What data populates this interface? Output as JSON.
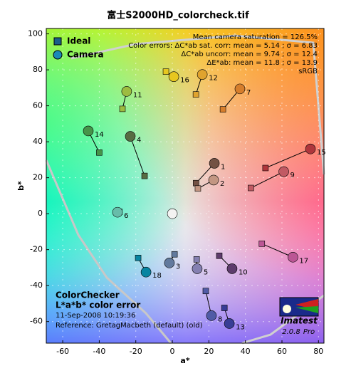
{
  "chart_data": {
    "type": "scatter",
    "title": "富士S2000HD_colorcheck.tif",
    "xlabel": "a*",
    "ylabel": "b*",
    "xlim": [
      -69,
      83
    ],
    "ylim": [
      -72,
      103
    ],
    "xticks": [
      -60,
      -40,
      -20,
      0,
      20,
      40,
      60,
      80
    ],
    "yticks": [
      -60,
      -40,
      -20,
      0,
      20,
      40,
      60,
      80,
      100
    ],
    "grid": true,
    "legend": "upper left",
    "annotations": [
      "Mean camera saturation = 126.5%",
      "Color errors:  ΔC*ab sat. corr:  mean = 5.14 ;  σ = 6.83",
      "ΔC*ab uncorr:  mean = 9.74 ;  σ = 12.4",
      "ΔE*ab:  mean = 11.8 ;  σ = 13.9",
      "sRGB"
    ],
    "notes": [
      "ColorChecker",
      "L*a*b* color error",
      "11-Sep-2008 10:19:36",
      "Reference: GretagMacbeth (default) (old)"
    ],
    "labels": [
      "1",
      "2",
      "3",
      "4",
      "5",
      "6",
      "7",
      "8",
      "9",
      "10",
      "11",
      "12",
      "13",
      "14",
      "15",
      "16",
      "17",
      "18",
      null
    ],
    "patch_colors": [
      "#735244",
      "#c29682",
      "#627a9d",
      "#576c43",
      "#8580b1",
      "#67bdaa",
      "#d67e2c",
      "#505ba6",
      "#c15a63",
      "#5e3c6c",
      "#9dbc40",
      "#e0a32e",
      "#383d96",
      "#469449",
      "#af363c",
      "#e7c71f",
      "#bb5695",
      "#0885a1",
      "#f3f3f2"
    ],
    "series": [
      {
        "name": "Ideal",
        "marker": "square",
        "color": "#1a5f8a",
        "x": [
          13,
          14,
          1.2,
          -15.2,
          13.3,
          -29,
          27.7,
          18.3,
          43,
          25.7,
          -27.3,
          12.9,
          28.5,
          -40,
          51,
          -3.5,
          49,
          -18.7,
          0
        ],
        "y": [
          17,
          14,
          -22.6,
          21,
          -25.4,
          1,
          58,
          -43,
          14.3,
          -23.4,
          58.3,
          66.3,
          -52.4,
          34,
          25.4,
          79,
          -16.7,
          -24.6,
          0
        ]
      },
      {
        "name": "Camera",
        "marker": "circle",
        "color": "#1b8ab8",
        "x": [
          23,
          22.6,
          -1.6,
          -23,
          13.6,
          -30,
          37,
          21.4,
          61,
          32.7,
          -25,
          16.4,
          31.2,
          -46,
          75.6,
          0.8,
          66,
          -14.4,
          0
        ],
        "y": [
          28,
          18.7,
          -27.4,
          43,
          -30.6,
          0.8,
          69.4,
          -56.7,
          23.4,
          -30.6,
          68,
          77.4,
          -61.1,
          46,
          36,
          76.2,
          -24.2,
          -32.5,
          0
        ]
      }
    ]
  },
  "logo": {
    "name": "Imatest",
    "version": "2.0.8",
    "edition": "Pro"
  }
}
